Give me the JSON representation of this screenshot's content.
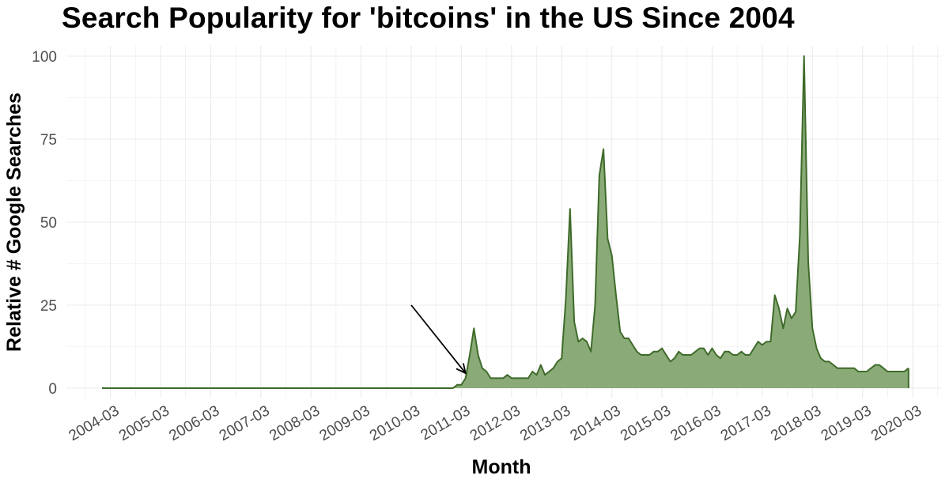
{
  "chart_data": {
    "type": "area",
    "title": "Search Popularity for 'bitcoins' in the US Since 2004",
    "xlabel": "Month",
    "ylabel": "Relative # Google Searches",
    "ylim": [
      0,
      100
    ],
    "y_ticks": [
      0,
      25,
      50,
      75,
      100
    ],
    "x_ticks": [
      "2004-03",
      "2005-03",
      "2006-03",
      "2007-03",
      "2008-03",
      "2009-03",
      "2010-03",
      "2011-03",
      "2012-03",
      "2013-03",
      "2014-03",
      "2015-03",
      "2016-03",
      "2017-03",
      "2018-03",
      "2019-03",
      "2020-03"
    ],
    "x_range": [
      "2004-01",
      "2020-02"
    ],
    "grid": true,
    "fill_color": "#8aab78",
    "line_color": "#3f6b2a",
    "annotation": {
      "type": "arrow",
      "from": [
        "2010-03",
        25
      ],
      "to": [
        "2011-04",
        4.5
      ]
    },
    "series": [
      {
        "points": [
          [
            "2004-01",
            0
          ],
          [
            "2011-01",
            0
          ],
          [
            "2011-02",
            1
          ],
          [
            "2011-03",
            1
          ],
          [
            "2011-04",
            3
          ],
          [
            "2011-05",
            10
          ],
          [
            "2011-06",
            18
          ],
          [
            "2011-07",
            10
          ],
          [
            "2011-08",
            6
          ],
          [
            "2011-09",
            5
          ],
          [
            "2011-10",
            3
          ],
          [
            "2011-11",
            3
          ],
          [
            "2011-12",
            3
          ],
          [
            "2012-01",
            3
          ],
          [
            "2012-02",
            4
          ],
          [
            "2012-03",
            3
          ],
          [
            "2012-04",
            3
          ],
          [
            "2012-05",
            3
          ],
          [
            "2012-06",
            3
          ],
          [
            "2012-07",
            3
          ],
          [
            "2012-08",
            5
          ],
          [
            "2012-09",
            4
          ],
          [
            "2012-10",
            7
          ],
          [
            "2012-11",
            4
          ],
          [
            "2012-12",
            5
          ],
          [
            "2013-01",
            6
          ],
          [
            "2013-02",
            8
          ],
          [
            "2013-03",
            9
          ],
          [
            "2013-04",
            27
          ],
          [
            "2013-05",
            54
          ],
          [
            "2013-06",
            20
          ],
          [
            "2013-07",
            14
          ],
          [
            "2013-08",
            15
          ],
          [
            "2013-09",
            14
          ],
          [
            "2013-10",
            11
          ],
          [
            "2013-11",
            25
          ],
          [
            "2013-12",
            64
          ],
          [
            "2014-01",
            72
          ],
          [
            "2014-02",
            45
          ],
          [
            "2014-03",
            40
          ],
          [
            "2014-04",
            28
          ],
          [
            "2014-05",
            17
          ],
          [
            "2014-06",
            15
          ],
          [
            "2014-07",
            15
          ],
          [
            "2014-08",
            13
          ],
          [
            "2014-09",
            11
          ],
          [
            "2014-10",
            10
          ],
          [
            "2014-11",
            10
          ],
          [
            "2014-12",
            10
          ],
          [
            "2015-01",
            11
          ],
          [
            "2015-02",
            11
          ],
          [
            "2015-03",
            12
          ],
          [
            "2015-04",
            10
          ],
          [
            "2015-05",
            8
          ],
          [
            "2015-06",
            9
          ],
          [
            "2015-07",
            11
          ],
          [
            "2015-08",
            10
          ],
          [
            "2015-09",
            10
          ],
          [
            "2015-10",
            10
          ],
          [
            "2015-11",
            11
          ],
          [
            "2015-12",
            12
          ],
          [
            "2016-01",
            12
          ],
          [
            "2016-02",
            10
          ],
          [
            "2016-03",
            12
          ],
          [
            "2016-04",
            10
          ],
          [
            "2016-05",
            9
          ],
          [
            "2016-06",
            11
          ],
          [
            "2016-07",
            11
          ],
          [
            "2016-08",
            10
          ],
          [
            "2016-09",
            10
          ],
          [
            "2016-10",
            11
          ],
          [
            "2016-11",
            10
          ],
          [
            "2016-12",
            10
          ],
          [
            "2017-01",
            12
          ],
          [
            "2017-02",
            14
          ],
          [
            "2017-03",
            13
          ],
          [
            "2017-04",
            14
          ],
          [
            "2017-05",
            14
          ],
          [
            "2017-06",
            28
          ],
          [
            "2017-07",
            24
          ],
          [
            "2017-08",
            18
          ],
          [
            "2017-09",
            24
          ],
          [
            "2017-10",
            21
          ],
          [
            "2017-11",
            23
          ],
          [
            "2017-12",
            46
          ],
          [
            "2018-01",
            100
          ],
          [
            "2018-02",
            38
          ],
          [
            "2018-03",
            18
          ],
          [
            "2018-04",
            12
          ],
          [
            "2018-05",
            9
          ],
          [
            "2018-06",
            8
          ],
          [
            "2018-07",
            8
          ],
          [
            "2018-08",
            7
          ],
          [
            "2018-09",
            6
          ],
          [
            "2018-10",
            6
          ],
          [
            "2018-11",
            6
          ],
          [
            "2018-12",
            6
          ],
          [
            "2019-01",
            6
          ],
          [
            "2019-02",
            5
          ],
          [
            "2019-03",
            5
          ],
          [
            "2019-04",
            5
          ],
          [
            "2019-05",
            6
          ],
          [
            "2019-06",
            7
          ],
          [
            "2019-07",
            7
          ],
          [
            "2019-08",
            6
          ],
          [
            "2019-09",
            5
          ],
          [
            "2019-10",
            5
          ],
          [
            "2019-11",
            5
          ],
          [
            "2019-12",
            5
          ],
          [
            "2020-01",
            5
          ],
          [
            "2020-02",
            6
          ]
        ]
      }
    ]
  }
}
